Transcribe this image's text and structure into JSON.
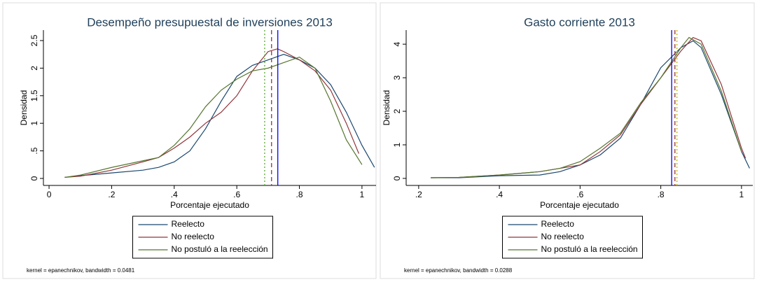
{
  "chart_data": [
    {
      "type": "line",
      "title": "Desempeño presupuestal de inversiones 2013",
      "x_label": "Porcentaje ejecutado",
      "y_label": "Densidad",
      "xlim": [
        -0.018,
        1.045
      ],
      "ylim": [
        -0.127,
        2.69
      ],
      "xticks": [
        0,
        {
          "value": 0.2,
          "label": ".2"
        },
        {
          "value": 0.4,
          "label": ".4"
        },
        {
          "value": 0.6,
          "label": ".6"
        },
        {
          "value": 0.8,
          "label": ".8"
        },
        1
      ],
      "yticks": [
        0,
        {
          "value": 0.5,
          "label": ".5"
        },
        1,
        1.5,
        2,
        2.5
      ],
      "series": [
        {
          "name": "Reelecto",
          "color": "#1a476f",
          "x": [
            0.05,
            0.1,
            0.2,
            0.3,
            0.35,
            0.4,
            0.45,
            0.5,
            0.55,
            0.6,
            0.65,
            0.7,
            0.75,
            0.8,
            0.85,
            0.9,
            0.95,
            1.0,
            1.04
          ],
          "values": [
            0.02,
            0.05,
            0.1,
            0.15,
            0.2,
            0.3,
            0.5,
            0.9,
            1.4,
            1.85,
            2.05,
            2.15,
            2.25,
            2.15,
            2.0,
            1.7,
            1.2,
            0.6,
            0.2
          ]
        },
        {
          "name": "No reelecto",
          "color": "#90353b",
          "x": [
            0.05,
            0.1,
            0.2,
            0.3,
            0.35,
            0.4,
            0.45,
            0.5,
            0.55,
            0.6,
            0.65,
            0.7,
            0.73,
            0.75,
            0.8,
            0.85,
            0.9,
            0.95,
            0.99
          ],
          "values": [
            0.02,
            0.04,
            0.15,
            0.3,
            0.38,
            0.55,
            0.75,
            1.0,
            1.2,
            1.5,
            1.95,
            2.3,
            2.35,
            2.3,
            2.15,
            1.95,
            1.6,
            1.0,
            0.45
          ]
        },
        {
          "name": "No postuló a la reelección",
          "color": "#55752f",
          "x": [
            0.05,
            0.1,
            0.2,
            0.3,
            0.35,
            0.4,
            0.45,
            0.5,
            0.55,
            0.6,
            0.65,
            0.7,
            0.75,
            0.8,
            0.85,
            0.9,
            0.95,
            1.0
          ],
          "values": [
            0.02,
            0.06,
            0.2,
            0.32,
            0.38,
            0.6,
            0.9,
            1.3,
            1.6,
            1.8,
            1.95,
            2.0,
            2.1,
            2.2,
            2.0,
            1.4,
            0.7,
            0.25
          ]
        }
      ],
      "reference_lines": [
        {
          "value": 0.731,
          "color": "#0000ff",
          "style": "solid"
        },
        {
          "value": 0.711,
          "color": "#90353b",
          "style": "dashed"
        },
        {
          "value": 0.689,
          "color": "#55a82f",
          "style": "dotted"
        }
      ],
      "note": "kernel = epanechnikov, bandwidth = 0.0481"
    },
    {
      "type": "line",
      "title": "Gasto corriente 2013",
      "x_label": "Porcentaje ejecutado",
      "y_label": "Densidad",
      "xlim": [
        0.169,
        1.028
      ],
      "ylim": [
        -0.21,
        4.42
      ],
      "xticks": [
        {
          "value": 0.2,
          "label": ".2"
        },
        {
          "value": 0.4,
          "label": ".4"
        },
        {
          "value": 0.6,
          "label": ".6"
        },
        {
          "value": 0.8,
          "label": ".8"
        },
        1
      ],
      "yticks": [
        0,
        1,
        2,
        3,
        4
      ],
      "series": [
        {
          "name": "Reelecto",
          "color": "#1a476f",
          "x": [
            0.23,
            0.3,
            0.4,
            0.5,
            0.55,
            0.6,
            0.65,
            0.7,
            0.75,
            0.8,
            0.85,
            0.88,
            0.9,
            0.95,
            1.0,
            1.02
          ],
          "values": [
            0.02,
            0.02,
            0.08,
            0.1,
            0.2,
            0.4,
            0.7,
            1.2,
            2.2,
            3.3,
            3.9,
            4.1,
            3.9,
            2.5,
            0.8,
            0.3
          ]
        },
        {
          "name": "No reelecto",
          "color": "#90353b",
          "x": [
            0.23,
            0.3,
            0.4,
            0.5,
            0.55,
            0.6,
            0.65,
            0.7,
            0.75,
            0.8,
            0.85,
            0.88,
            0.9,
            0.95,
            1.0,
            1.01
          ],
          "values": [
            0.02,
            0.03,
            0.1,
            0.2,
            0.3,
            0.4,
            0.8,
            1.3,
            2.2,
            3.0,
            3.8,
            4.2,
            4.1,
            2.8,
            0.9,
            0.6
          ]
        },
        {
          "name": "No postuló a la reelección",
          "color": "#55752f",
          "x": [
            0.23,
            0.3,
            0.4,
            0.5,
            0.55,
            0.6,
            0.65,
            0.7,
            0.75,
            0.8,
            0.85,
            0.87,
            0.9,
            0.95,
            1.0
          ],
          "values": [
            0.02,
            0.03,
            0.1,
            0.2,
            0.3,
            0.5,
            0.9,
            1.35,
            2.25,
            3.0,
            3.9,
            4.2,
            4.0,
            2.6,
            0.8
          ]
        }
      ],
      "reference_lines": [
        {
          "value": 0.827,
          "color": "#0000ff",
          "style": "solid"
        },
        {
          "value": 0.835,
          "color": "#90353b",
          "style": "dashed"
        },
        {
          "value": 0.84,
          "color": "#c8b400",
          "style": "dotted"
        }
      ],
      "note": "kernel = epanechnikov, bandwidth = 0.0288"
    }
  ]
}
